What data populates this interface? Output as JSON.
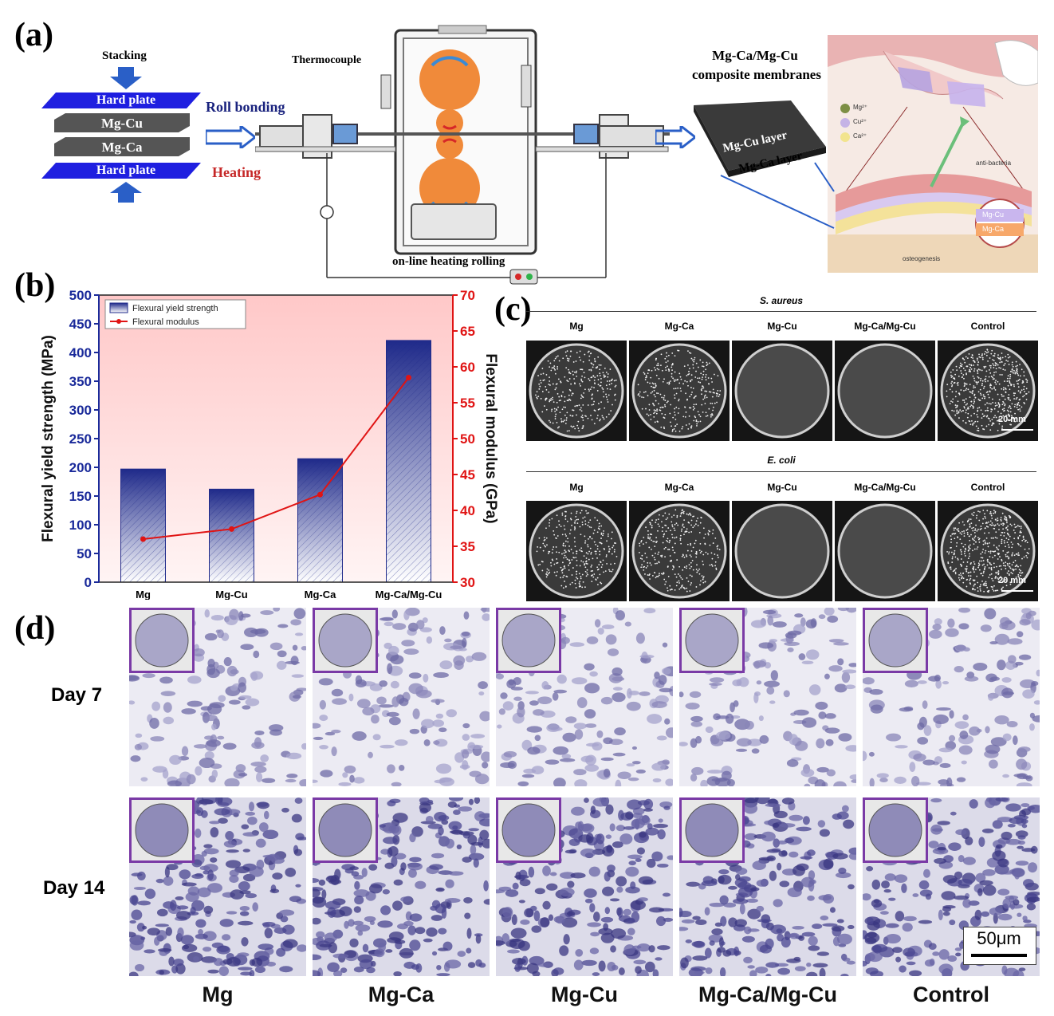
{
  "panels": {
    "a": "(a)",
    "b": "(b)",
    "c": "(c)",
    "d": "(d)"
  },
  "panel_a": {
    "stacking": "Stacking",
    "layers": [
      "Hard plate",
      "Mg-Cu",
      "Mg-Ca",
      "Hard plate"
    ],
    "roll_bonding": "Roll bonding",
    "heating": "Heating",
    "thermocouple": "Thermocouple",
    "online_heating": "on-line heating rolling",
    "membrane_title_1": "Mg-Ca/Mg-Cu",
    "membrane_title_2": "composite membranes",
    "mgcu_layer": "Mg-Cu layer",
    "mgca_layer": "Mg-Ca layer",
    "legend_ions": [
      "Mg²⁺",
      "Cu²⁺",
      "Ca²⁺"
    ],
    "anti_bacteria": "anti-bacteria",
    "osteogenesis": "osteogenesis",
    "illus_mgcu": "Mg-Cu",
    "illus_mgca": "Mg-Ca",
    "colors": {
      "hard_plate": "#1f1fe0",
      "layer": "#4a4a4a",
      "roll": "#f08a3a",
      "arrow": "#2a5fc7"
    }
  },
  "chart_data": {
    "type": "bar",
    "categories": [
      "Mg",
      "Mg-Cu",
      "Mg-Ca",
      "Mg-Ca/Mg-Cu"
    ],
    "series": [
      {
        "name": "Flexural yield strength",
        "type": "bar",
        "axis": "left",
        "values": [
          197,
          162,
          215,
          421
        ]
      },
      {
        "name": "Flexural modulus",
        "type": "line",
        "axis": "right",
        "values": [
          36.0,
          37.4,
          42.2,
          58.5
        ]
      }
    ],
    "ylabel": "Flexural yield strength (MPa)",
    "ylabel_right": "Flexural modulus (GPa)",
    "ylim": [
      0,
      500
    ],
    "ylim_right": [
      30,
      70
    ],
    "yticks": [
      "0",
      "50",
      "100",
      "150",
      "200",
      "250",
      "300",
      "350",
      "400",
      "450",
      "500"
    ],
    "yticks_right": [
      "30",
      "35",
      "40",
      "45",
      "50",
      "55",
      "60",
      "65",
      "70"
    ],
    "legend_position": "top-left",
    "colors": {
      "bar": "#1f2a8a",
      "line": "#e01414",
      "background": "#ffd6d6",
      "left_axis": "#1a2a9a",
      "right_axis": "#e01414"
    }
  },
  "panel_c": {
    "sa_title": "S. aureus",
    "ec_title": "E. coli",
    "columns": [
      "Mg",
      "Mg-Ca",
      "Mg-Cu",
      "Mg-Ca/Mg-Cu",
      "Control"
    ],
    "sa_colonies": [
      1,
      1,
      0,
      0,
      1
    ],
    "ec_colonies": [
      1,
      1,
      0,
      0,
      1
    ],
    "scale": "20 mm"
  },
  "panel_d": {
    "rows": [
      "Day 7",
      "Day 14"
    ],
    "columns": [
      "Mg",
      "Mg-Ca",
      "Mg-Cu",
      "Mg-Ca/Mg-Cu",
      "Control"
    ],
    "scale": "50μm",
    "inset_color": "#7a3aa6"
  }
}
